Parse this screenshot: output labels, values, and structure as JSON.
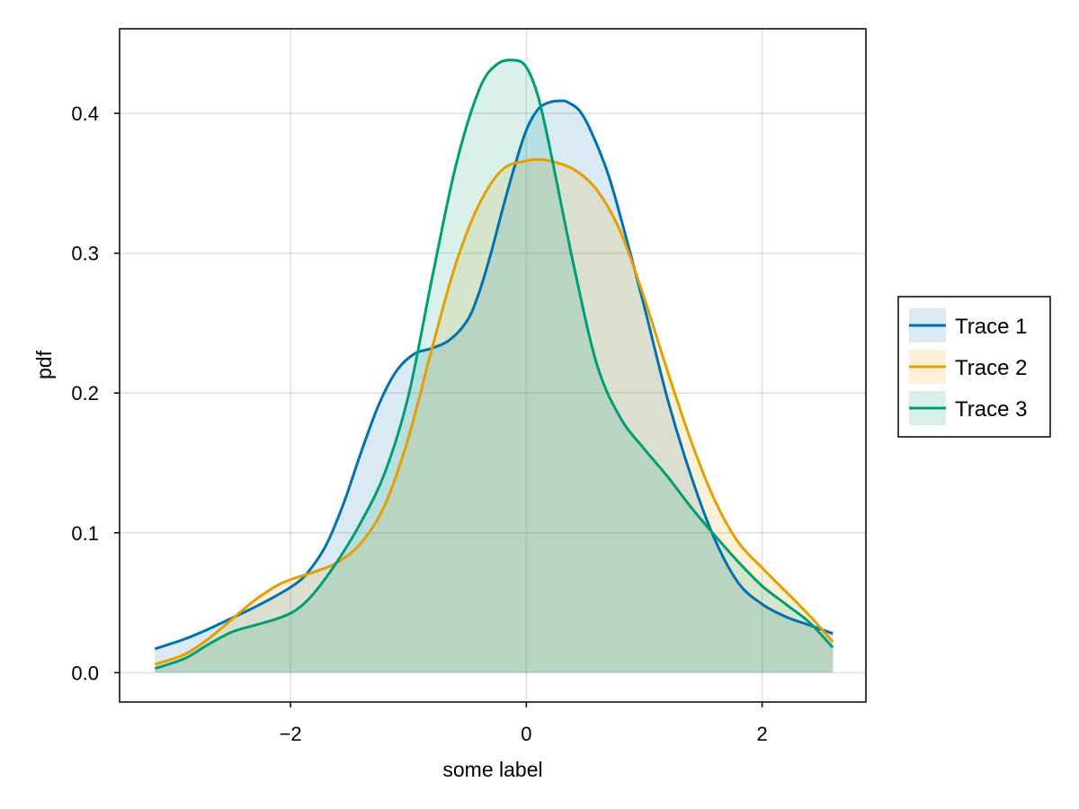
{
  "chart_data": {
    "type": "area",
    "title": "",
    "xlabel": "some label",
    "ylabel": "pdf",
    "xlim": [
      -3.45,
      2.88
    ],
    "ylim": [
      -0.021,
      0.4605
    ],
    "xticks": [
      -2,
      0,
      2
    ],
    "xtick_labels": [
      "−2",
      "0",
      "2"
    ],
    "yticks": [
      0.0,
      0.1,
      0.2,
      0.3,
      0.4
    ],
    "ytick_labels": [
      "0.0",
      "0.1",
      "0.2",
      "0.3",
      "0.4"
    ],
    "grid": true,
    "legend": "outside-right",
    "fill_opacity": 0.15,
    "series": [
      {
        "name": "Trace 1",
        "color": "#0072b2",
        "x": [
          -3.15,
          -2.9,
          -2.7,
          -2.5,
          -2.3,
          -2.1,
          -1.95,
          -1.85,
          -1.7,
          -1.55,
          -1.4,
          -1.25,
          -1.1,
          -0.95,
          -0.8,
          -0.65,
          -0.5,
          -0.4,
          -0.3,
          -0.2,
          -0.1,
          0.0,
          0.1,
          0.2,
          0.3,
          0.35,
          0.45,
          0.55,
          0.7,
          0.85,
          1.0,
          1.2,
          1.4,
          1.6,
          1.8,
          2.0,
          2.2,
          2.4,
          2.6
        ],
        "y": [
          0.017,
          0.024,
          0.031,
          0.039,
          0.047,
          0.056,
          0.064,
          0.072,
          0.091,
          0.121,
          0.158,
          0.192,
          0.216,
          0.228,
          0.232,
          0.238,
          0.252,
          0.272,
          0.3,
          0.332,
          0.362,
          0.388,
          0.403,
          0.408,
          0.409,
          0.408,
          0.402,
          0.387,
          0.355,
          0.31,
          0.262,
          0.195,
          0.14,
          0.095,
          0.064,
          0.049,
          0.04,
          0.034,
          0.028
        ]
      },
      {
        "name": "Trace 2",
        "color": "#e69f00",
        "x": [
          -3.15,
          -2.9,
          -2.7,
          -2.5,
          -2.3,
          -2.1,
          -1.95,
          -1.8,
          -1.6,
          -1.4,
          -1.2,
          -1.0,
          -0.8,
          -0.6,
          -0.4,
          -0.2,
          0.0,
          0.1,
          0.2,
          0.4,
          0.6,
          0.8,
          1.0,
          1.2,
          1.4,
          1.6,
          1.8,
          2.0,
          2.2,
          2.4,
          2.6
        ],
        "y": [
          0.006,
          0.013,
          0.024,
          0.038,
          0.052,
          0.063,
          0.068,
          0.072,
          0.079,
          0.093,
          0.12,
          0.168,
          0.232,
          0.292,
          0.335,
          0.36,
          0.366,
          0.367,
          0.366,
          0.36,
          0.345,
          0.315,
          0.268,
          0.215,
          0.165,
          0.123,
          0.093,
          0.075,
          0.058,
          0.041,
          0.022
        ]
      },
      {
        "name": "Trace 3",
        "color": "#009e73",
        "x": [
          -3.15,
          -2.9,
          -2.7,
          -2.5,
          -2.3,
          -2.1,
          -1.95,
          -1.8,
          -1.6,
          -1.4,
          -1.2,
          -1.0,
          -0.8,
          -0.6,
          -0.4,
          -0.25,
          -0.1,
          0.0,
          0.1,
          0.2,
          0.4,
          0.6,
          0.8,
          1.0,
          1.2,
          1.4,
          1.6,
          1.8,
          2.0,
          2.2,
          2.4,
          2.6
        ],
        "y": [
          0.003,
          0.01,
          0.02,
          0.029,
          0.034,
          0.039,
          0.045,
          0.057,
          0.08,
          0.108,
          0.143,
          0.198,
          0.282,
          0.362,
          0.417,
          0.435,
          0.438,
          0.433,
          0.412,
          0.375,
          0.292,
          0.22,
          0.182,
          0.16,
          0.14,
          0.118,
          0.098,
          0.079,
          0.062,
          0.049,
          0.036,
          0.018
        ]
      }
    ]
  }
}
